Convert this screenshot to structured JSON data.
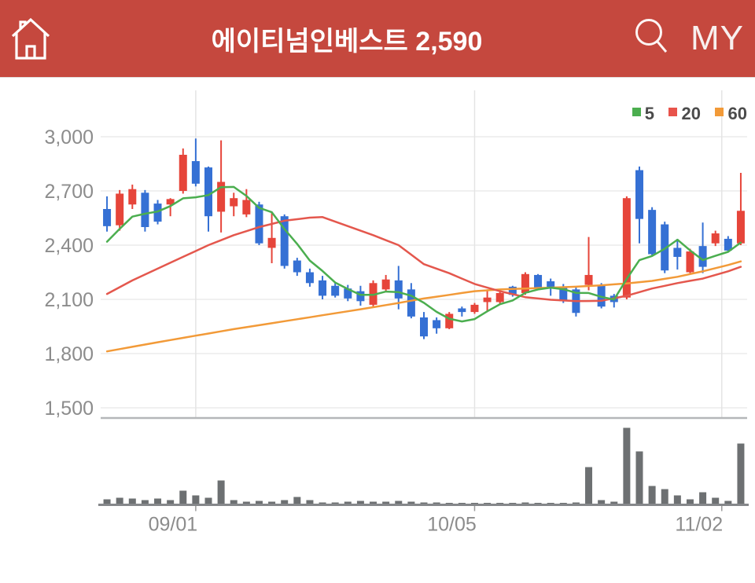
{
  "header": {
    "stock_name": "에이티넘인베스트",
    "price": "2,590",
    "my_label": "MY",
    "bg_color": "#c5483e"
  },
  "chart_data": {
    "type": "candlestick_with_volume",
    "title": "에이티넘인베스트 daily price chart",
    "legend": [
      {
        "label": "5",
        "color": "#4bae4f"
      },
      {
        "label": "20",
        "color": "#e8534b"
      },
      {
        "label": "60",
        "color": "#f29a38"
      }
    ],
    "y_axis": {
      "ticks": [
        3000,
        2700,
        2400,
        2100,
        1800,
        1500
      ],
      "tick_labels": [
        "3,000",
        "2,700",
        "2,400",
        "2,100",
        "1,800",
        "1,500"
      ],
      "range": [
        1500,
        3050
      ]
    },
    "x_axis": {
      "tick_labels": [
        "09/01",
        "10/05",
        "11/02"
      ],
      "tick_indices": [
        7,
        29,
        48.5
      ]
    },
    "colors": {
      "up": "#e6453a",
      "down": "#3570d4",
      "ma5": "#4bae4f",
      "ma20": "#e4574d",
      "ma60": "#f29a38",
      "volume": "#6d7072",
      "grid": "#ececec",
      "vgrid": "#e4e4e4",
      "separator": "#b5b7b9",
      "baseline": "#85878a",
      "axis_text": "#8c8c8c",
      "legend_text": "#4b4b4b"
    },
    "candles_format": [
      "open",
      "high",
      "low",
      "close"
    ],
    "candles": [
      [
        2600,
        2670,
        2475,
        2505
      ],
      [
        2510,
        2705,
        2480,
        2685
      ],
      [
        2625,
        2735,
        2600,
        2710
      ],
      [
        2690,
        2705,
        2475,
        2500
      ],
      [
        2630,
        2650,
        2515,
        2530
      ],
      [
        2625,
        2660,
        2560,
        2655
      ],
      [
        2700,
        2935,
        2685,
        2900
      ],
      [
        2865,
        2990,
        2725,
        2740
      ],
      [
        2830,
        2835,
        2475,
        2560
      ],
      [
        2585,
        2980,
        2470,
        2750
      ],
      [
        2615,
        2690,
        2560,
        2660
      ],
      [
        2570,
        2710,
        2555,
        2650
      ],
      [
        2625,
        2640,
        2400,
        2410
      ],
      [
        2385,
        2580,
        2300,
        2440
      ],
      [
        2560,
        2570,
        2270,
        2285
      ],
      [
        2315,
        2330,
        2230,
        2250
      ],
      [
        2250,
        2270,
        2170,
        2190
      ],
      [
        2205,
        2230,
        2100,
        2120
      ],
      [
        2175,
        2190,
        2110,
        2120
      ],
      [
        2160,
        2180,
        2090,
        2105
      ],
      [
        2145,
        2175,
        2065,
        2090
      ],
      [
        2070,
        2205,
        2060,
        2190
      ],
      [
        2155,
        2235,
        2140,
        2210
      ],
      [
        2205,
        2285,
        2045,
        2105
      ],
      [
        2155,
        2190,
        1995,
        2005
      ],
      [
        2000,
        2030,
        1880,
        1895
      ],
      [
        1985,
        2000,
        1910,
        1940
      ],
      [
        1940,
        2030,
        1935,
        2020
      ],
      [
        2050,
        2060,
        2005,
        2030
      ],
      [
        2030,
        2080,
        2020,
        2070
      ],
      [
        2085,
        2155,
        2030,
        2110
      ],
      [
        2085,
        2145,
        2070,
        2135
      ],
      [
        2170,
        2175,
        2115,
        2125
      ],
      [
        2135,
        2250,
        2125,
        2240
      ],
      [
        2235,
        2240,
        2150,
        2165
      ],
      [
        2200,
        2215,
        2120,
        2160
      ],
      [
        2170,
        2185,
        2080,
        2090
      ],
      [
        2155,
        2170,
        2005,
        2025
      ],
      [
        2180,
        2445,
        2150,
        2235
      ],
      [
        2175,
        2190,
        2050,
        2060
      ],
      [
        2120,
        2130,
        2055,
        2085
      ],
      [
        2110,
        2670,
        2100,
        2660
      ],
      [
        2815,
        2835,
        2410,
        2545
      ],
      [
        2595,
        2610,
        2340,
        2350
      ],
      [
        2515,
        2530,
        2245,
        2260
      ],
      [
        2385,
        2435,
        2265,
        2335
      ],
      [
        2250,
        2380,
        2245,
        2365
      ],
      [
        2395,
        2525,
        2245,
        2280
      ],
      [
        2410,
        2480,
        2395,
        2465
      ],
      [
        2435,
        2450,
        2360,
        2370
      ],
      [
        2410,
        2800,
        2400,
        2590
      ]
    ],
    "volumes": [
      6,
      8,
      7,
      5,
      7,
      5,
      17,
      11,
      8,
      30,
      5,
      3,
      4,
      3,
      5,
      9,
      5,
      2,
      2,
      3,
      4,
      3,
      3,
      4,
      3,
      2,
      2,
      1,
      1,
      1,
      1,
      1,
      1,
      2,
      1,
      1,
      1,
      2,
      47,
      5,
      3,
      97,
      67,
      23,
      19,
      11,
      6,
      15,
      8,
      4,
      77
    ],
    "ma5_seed": [
      2330,
      2370,
      2420,
      2470
    ],
    "ma20_points": [
      [
        0,
        2130
      ],
      [
        2,
        2205
      ],
      [
        4,
        2270
      ],
      [
        6,
        2335
      ],
      [
        8,
        2400
      ],
      [
        10,
        2455
      ],
      [
        12,
        2500
      ],
      [
        14,
        2535
      ],
      [
        16,
        2552
      ],
      [
        17,
        2555
      ],
      [
        19,
        2505
      ],
      [
        21,
        2455
      ],
      [
        23,
        2400
      ],
      [
        25,
        2295
      ],
      [
        27,
        2245
      ],
      [
        29,
        2185
      ],
      [
        31,
        2145
      ],
      [
        33,
        2112
      ],
      [
        35,
        2098
      ],
      [
        37,
        2090
      ],
      [
        39,
        2092
      ],
      [
        41,
        2120
      ],
      [
        43,
        2160
      ],
      [
        45,
        2190
      ],
      [
        47,
        2215
      ],
      [
        49,
        2255
      ],
      [
        50,
        2280
      ]
    ],
    "ma60_points": [
      [
        0,
        1812
      ],
      [
        5,
        1875
      ],
      [
        10,
        1935
      ],
      [
        15,
        1990
      ],
      [
        20,
        2045
      ],
      [
        23,
        2080
      ],
      [
        25,
        2105
      ],
      [
        27,
        2125
      ],
      [
        29,
        2145
      ],
      [
        31,
        2155
      ],
      [
        33,
        2160
      ],
      [
        35,
        2165
      ],
      [
        37,
        2170
      ],
      [
        39,
        2178
      ],
      [
        41,
        2188
      ],
      [
        43,
        2202
      ],
      [
        45,
        2225
      ],
      [
        47,
        2255
      ],
      [
        49,
        2290
      ],
      [
        50,
        2310
      ]
    ]
  }
}
